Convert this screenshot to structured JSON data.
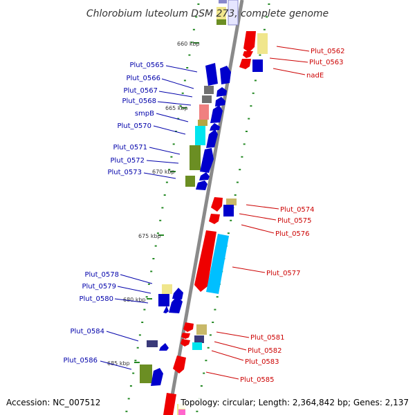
{
  "title": "Chlorobium luteolum DSM 273, complete genome",
  "footer": {
    "accession": "Accession: NC_007512",
    "topology": "Topology: circular; Length: 2,364,842 bp; Genes: 2,137"
  },
  "colors": {
    "backbone": "#8a8a8a",
    "plus_strand_label": "#0000aa",
    "minus_strand_label": "#cc0000",
    "tick": "#228822"
  },
  "kbp_markers": [
    {
      "label": "660 kbp"
    },
    {
      "label": "665 kbp"
    },
    {
      "label": "670 kbp"
    },
    {
      "label": "675 kbp"
    },
    {
      "label": "680 kbp"
    },
    {
      "label": "685 kbp"
    }
  ],
  "left_labels": [
    {
      "text": "Plut_0565"
    },
    {
      "text": "Plut_0566"
    },
    {
      "text": "Plut_0567"
    },
    {
      "text": "Plut_0568"
    },
    {
      "text": "smpB"
    },
    {
      "text": "Plut_0570"
    },
    {
      "text": "Plut_0571"
    },
    {
      "text": "Plut_0572"
    },
    {
      "text": "Plut_0573"
    },
    {
      "text": "Plut_0578"
    },
    {
      "text": "Plut_0579"
    },
    {
      "text": "Plut_0580"
    },
    {
      "text": "Plut_0584"
    },
    {
      "text": "Plut_0586"
    }
  ],
  "right_labels": [
    {
      "text": "Plut_0562"
    },
    {
      "text": "Plut_0563"
    },
    {
      "text": "nadE"
    },
    {
      "text": "Plut_0574"
    },
    {
      "text": "Plut_0575"
    },
    {
      "text": "Plut_0576"
    },
    {
      "text": "Plut_0577"
    },
    {
      "text": "Plut_0581"
    },
    {
      "text": "Plut_0582"
    },
    {
      "text": "Plut_0583"
    },
    {
      "text": "Plut_0585"
    }
  ]
}
